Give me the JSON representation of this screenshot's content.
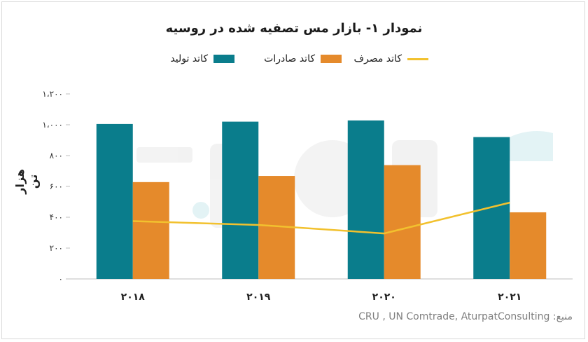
{
  "chart_data": {
    "type": "bar",
    "title": "نمودار ۱- بازار مس تصفیه شده در روسیه",
    "ylabel": "هزار تن",
    "categories": [
      "۲۰۱۸",
      "۲۰۱۹",
      "۲۰۲۰",
      "۲۰۲۱"
    ],
    "ylim": [
      0,
      1200
    ],
    "yticks": [
      0,
      200,
      400,
      600,
      800,
      1000,
      1200
    ],
    "ytick_labels": [
      "۰",
      "۲۰۰",
      "۴۰۰",
      "۶۰۰",
      "۸۰۰",
      "۱،۰۰۰",
      "۱،۲۰۰"
    ],
    "series": [
      {
        "name": "کاتد تولید",
        "kind": "bar",
        "color": "#0a7d8c",
        "values": [
          1005,
          1020,
          1028,
          920
        ]
      },
      {
        "name": "کاتد صادرات",
        "kind": "bar",
        "color": "#e58a2b",
        "values": [
          628,
          668,
          738,
          432
        ]
      },
      {
        "name": "کاتد مصرف",
        "kind": "line",
        "color": "#f2c12e",
        "values": [
          375,
          350,
          295,
          495
        ]
      }
    ],
    "grid": false,
    "legend": "top"
  },
  "source": "منبع: CRU , UN Comtrade, AturpatConsulting"
}
